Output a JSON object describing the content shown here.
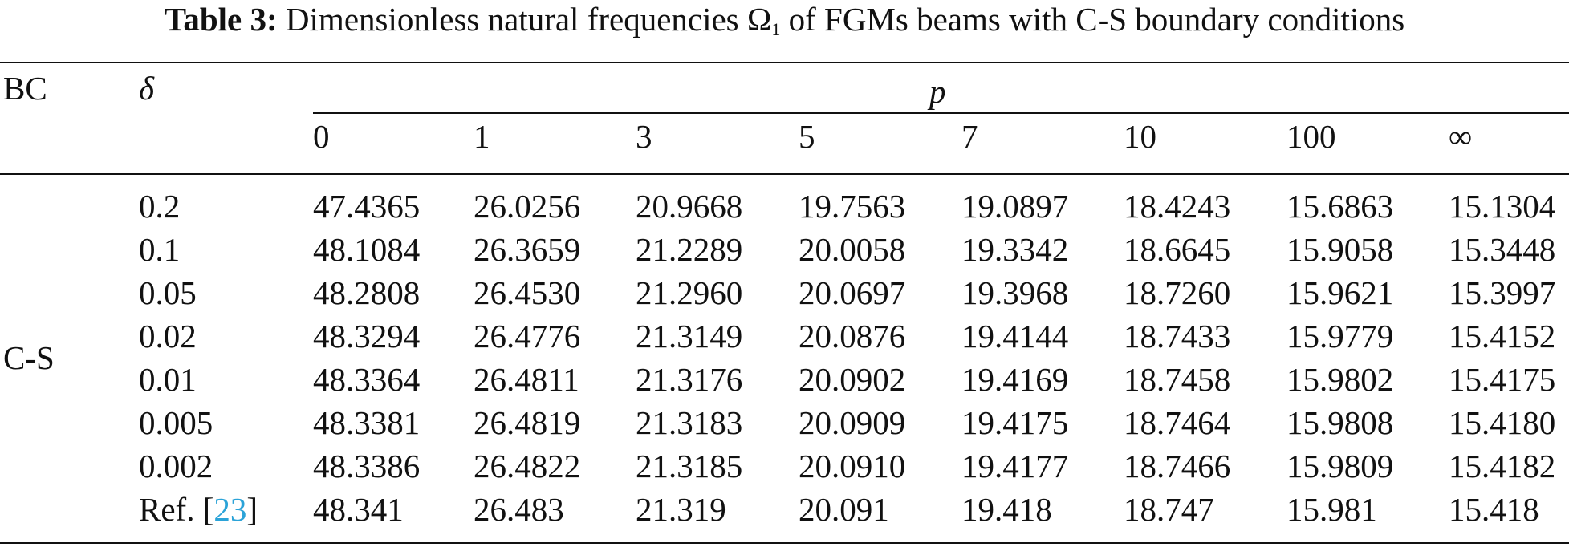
{
  "caption": {
    "label": "Table 3:",
    "text_before": "Dimensionless natural frequencies Ω",
    "subscript": "1",
    "text_after": " of FGMs beams with C-S boundary conditions"
  },
  "table": {
    "header_bc": "BC",
    "header_delta": "δ",
    "header_p": "p",
    "p_values": [
      "0",
      "1",
      "3",
      "5",
      "7",
      "10",
      "100",
      "∞"
    ],
    "bc_group": "C-S",
    "rows": [
      {
        "delta": "0.2",
        "values": [
          "47.4365",
          "26.0256",
          "20.9668",
          "19.7563",
          "19.0897",
          "18.4243",
          "15.6863",
          "15.1304"
        ]
      },
      {
        "delta": "0.1",
        "values": [
          "48.1084",
          "26.3659",
          "21.2289",
          "20.0058",
          "19.3342",
          "18.6645",
          "15.9058",
          "15.3448"
        ]
      },
      {
        "delta": "0.05",
        "values": [
          "48.2808",
          "26.4530",
          "21.2960",
          "20.0697",
          "19.3968",
          "18.7260",
          "15.9621",
          "15.3997"
        ]
      },
      {
        "delta": "0.02",
        "values": [
          "48.3294",
          "26.4776",
          "21.3149",
          "20.0876",
          "19.4144",
          "18.7433",
          "15.9779",
          "15.4152"
        ]
      },
      {
        "delta": "0.01",
        "values": [
          "48.3364",
          "26.4811",
          "21.3176",
          "20.0902",
          "19.4169",
          "18.7458",
          "15.9802",
          "15.4175"
        ]
      },
      {
        "delta": "0.005",
        "values": [
          "48.3381",
          "26.4819",
          "21.3183",
          "20.0909",
          "19.4175",
          "18.7464",
          "15.9808",
          "15.4180"
        ]
      },
      {
        "delta": "0.002",
        "values": [
          "48.3386",
          "26.4822",
          "21.3185",
          "20.0910",
          "19.4177",
          "18.7466",
          "15.9809",
          "15.4182"
        ]
      }
    ],
    "ref_row": {
      "prefix": "Ref. [",
      "ref_number": "23",
      "suffix": "]",
      "values": [
        "48.341",
        "26.483",
        "21.319",
        "20.091",
        "19.418",
        "18.747",
        "15.981",
        "15.418"
      ]
    }
  }
}
